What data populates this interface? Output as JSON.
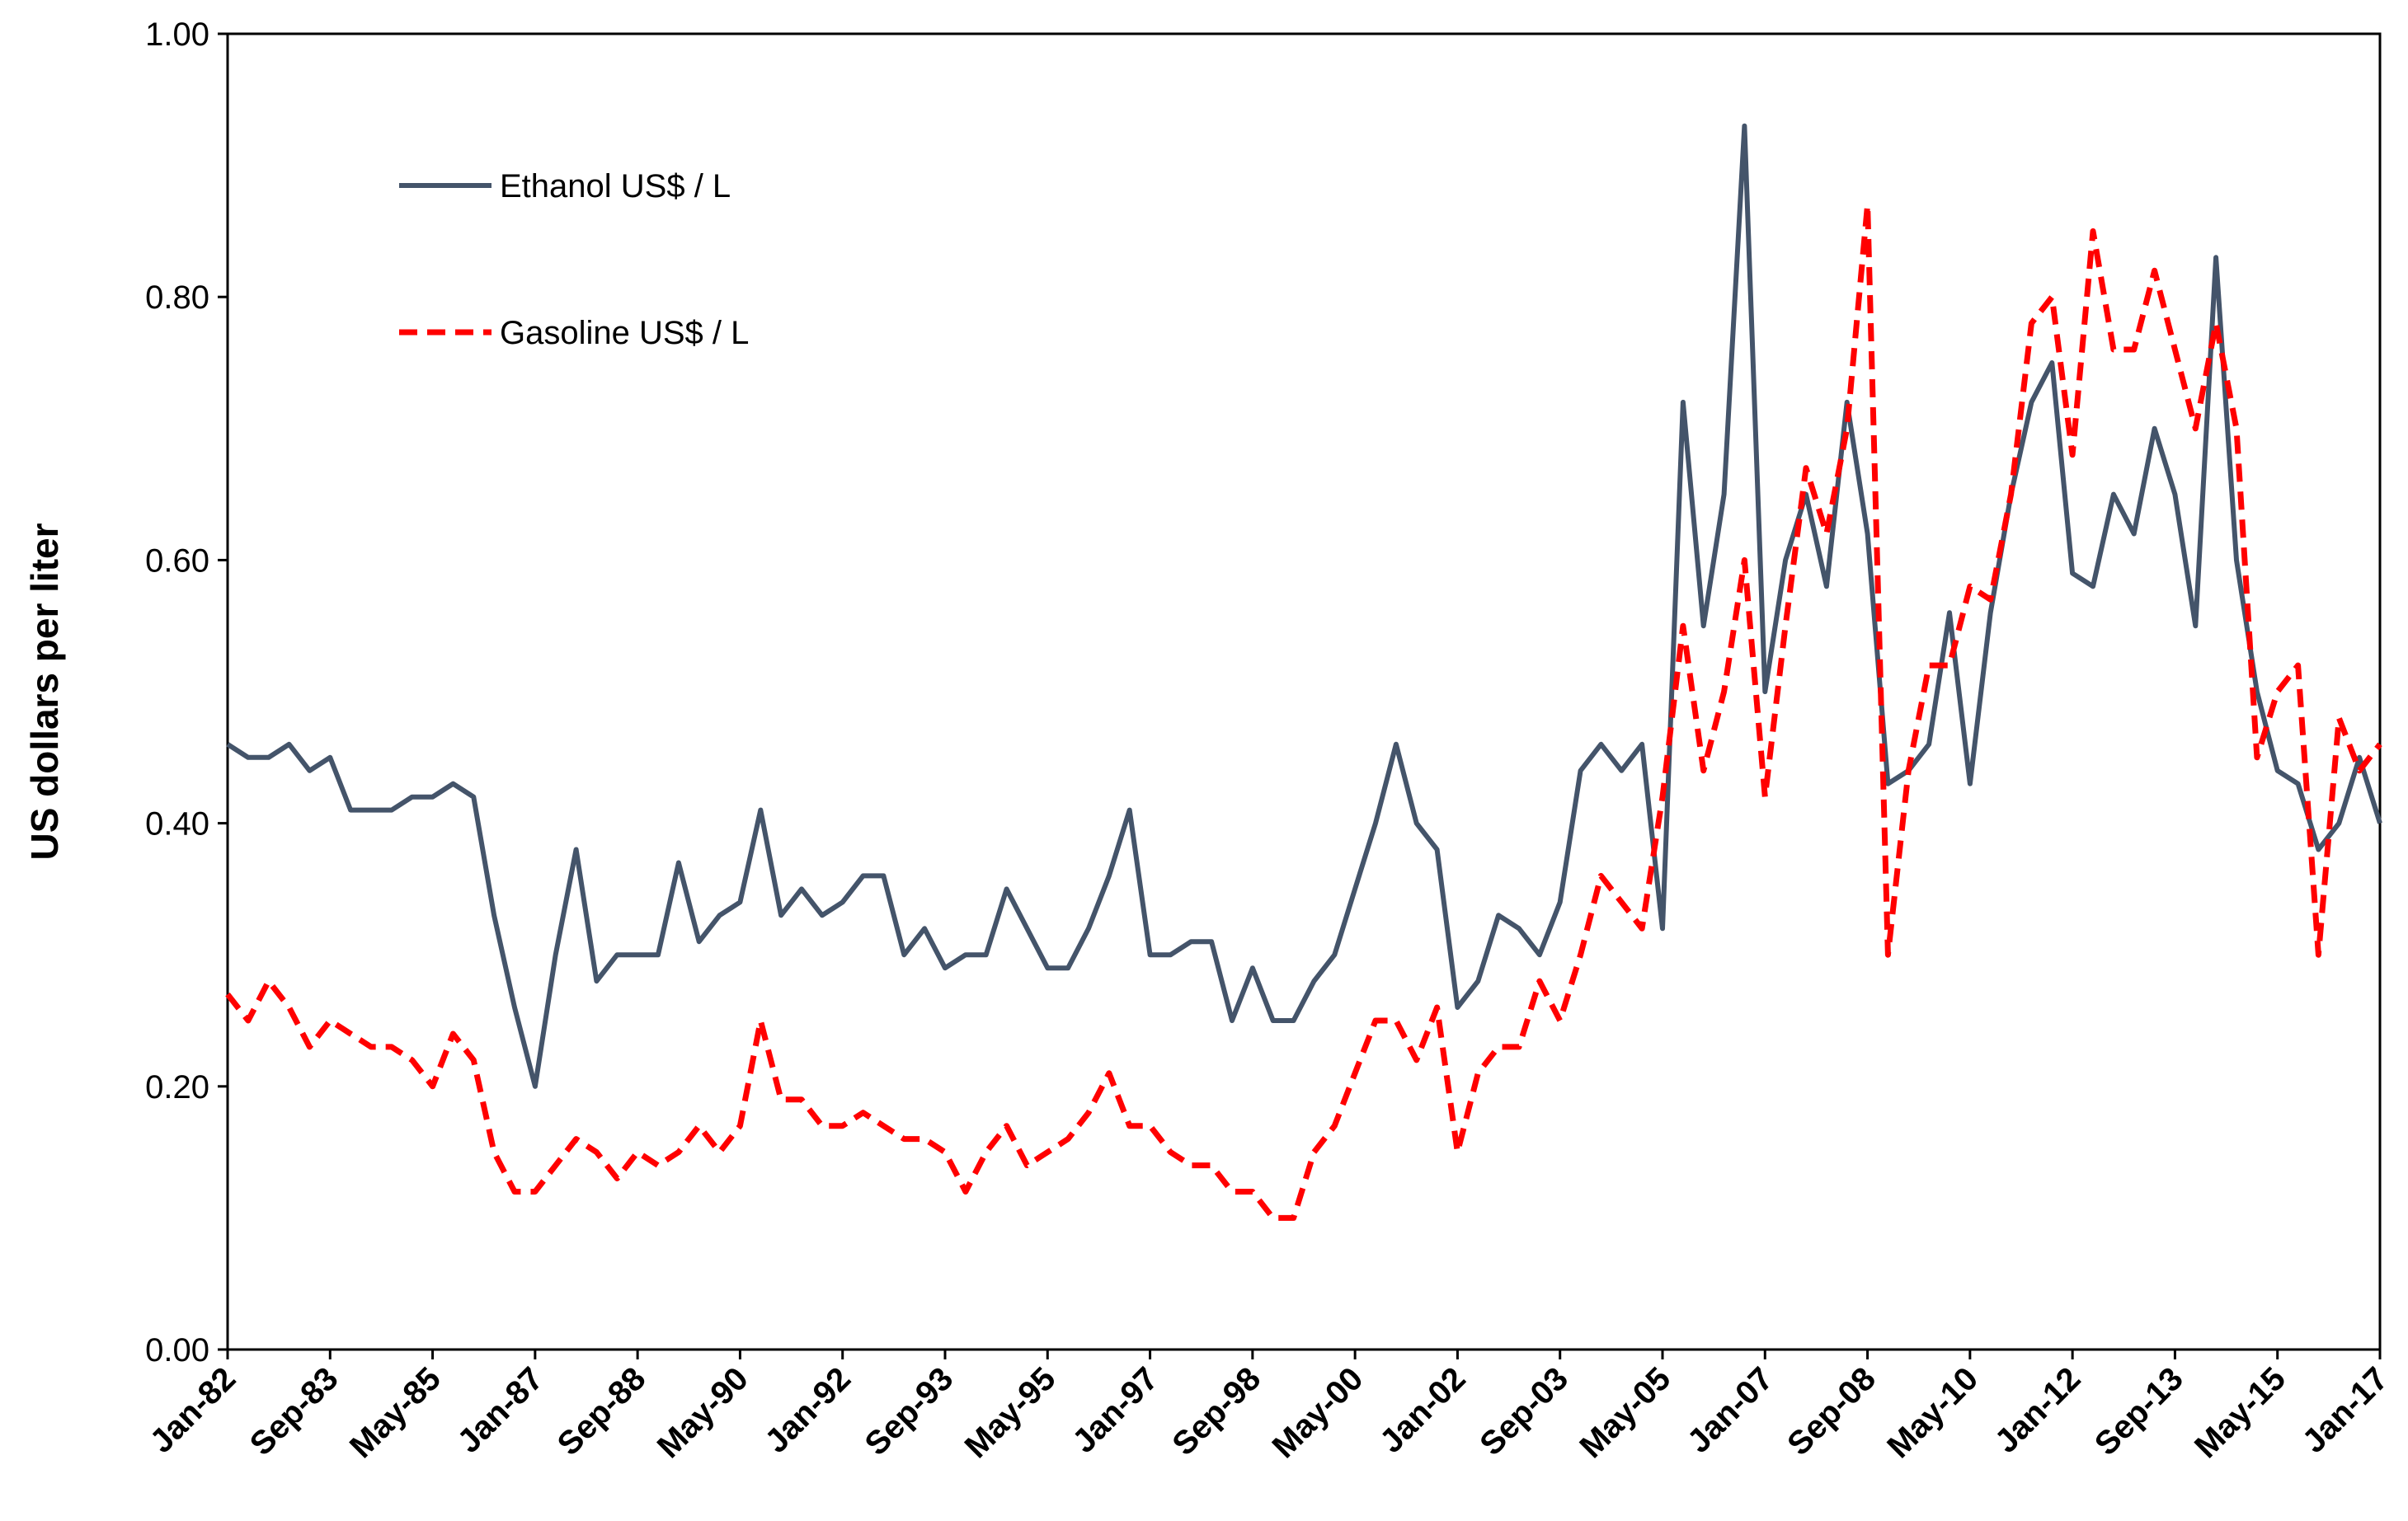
{
  "chart_data": {
    "type": "line",
    "ylabel": "US dollars per liter",
    "categories": [
      "Jan-82",
      null,
      null,
      null,
      null,
      "Sep-83",
      null,
      null,
      null,
      null,
      "May-85",
      null,
      null,
      null,
      null,
      "Jan-87",
      null,
      null,
      null,
      null,
      "Sep-88",
      null,
      null,
      null,
      null,
      "May-90",
      null,
      null,
      null,
      null,
      "Jan-92",
      null,
      null,
      null,
      null,
      "Sep-93",
      null,
      null,
      null,
      null,
      "May-95",
      null,
      null,
      null,
      null,
      "Jan-97",
      null,
      null,
      null,
      null,
      "Sep-98",
      null,
      null,
      null,
      null,
      "May-00",
      null,
      null,
      null,
      null,
      "Jan-02",
      null,
      null,
      null,
      null,
      "Sep-03",
      null,
      null,
      null,
      null,
      "May-05",
      null,
      null,
      null,
      null,
      "Jan-07",
      null,
      null,
      null,
      null,
      "Sep-08",
      null,
      null,
      null,
      null,
      "May-10",
      null,
      null,
      null,
      null,
      "Jan-12",
      null,
      null,
      null,
      null,
      "Sep-13",
      null,
      null,
      null,
      null,
      "May-15",
      null,
      null,
      null,
      null,
      "Jan-17"
    ],
    "series": [
      {
        "name": "Ethanol US$ / L",
        "color": "#44546a",
        "line_style": "solid",
        "values": [
          0.46,
          0.45,
          0.45,
          0.46,
          0.44,
          0.45,
          0.41,
          0.41,
          0.41,
          0.42,
          0.42,
          0.43,
          0.42,
          0.33,
          0.26,
          0.2,
          0.3,
          0.38,
          0.28,
          0.3,
          0.3,
          0.3,
          0.37,
          0.31,
          0.33,
          0.34,
          0.41,
          0.33,
          0.35,
          0.33,
          0.34,
          0.36,
          0.36,
          0.3,
          0.32,
          0.29,
          0.3,
          0.3,
          0.35,
          0.32,
          0.29,
          0.29,
          0.32,
          0.36,
          0.41,
          0.3,
          0.3,
          0.31,
          0.31,
          0.25,
          0.29,
          0.25,
          0.25,
          0.28,
          0.3,
          0.35,
          0.4,
          0.46,
          0.4,
          0.38,
          0.26,
          0.28,
          0.33,
          0.32,
          0.3,
          0.34,
          0.44,
          0.46,
          0.44,
          0.46,
          0.32,
          0.72,
          0.55,
          0.65,
          0.93,
          0.5,
          0.6,
          0.65,
          0.58,
          0.72,
          0.62,
          0.43,
          0.44,
          0.46,
          0.56,
          0.43,
          0.56,
          0.65,
          0.72,
          0.75,
          0.59,
          0.58,
          0.65,
          0.62,
          0.7,
          0.65,
          0.55,
          0.83,
          0.6,
          0.5,
          0.44,
          0.43,
          0.38,
          0.4,
          0.45,
          0.4
        ]
      },
      {
        "name": "Gasoline US$ / L",
        "color": "#ff0000",
        "line_style": "dashed",
        "values": [
          0.27,
          0.25,
          0.28,
          0.26,
          0.23,
          0.25,
          0.24,
          0.23,
          0.23,
          0.22,
          0.2,
          0.24,
          0.22,
          0.15,
          0.12,
          0.12,
          0.14,
          0.16,
          0.15,
          0.13,
          0.15,
          0.14,
          0.15,
          0.17,
          0.15,
          0.17,
          0.25,
          0.19,
          0.19,
          0.17,
          0.17,
          0.18,
          0.17,
          0.16,
          0.16,
          0.15,
          0.12,
          0.15,
          0.17,
          0.14,
          0.15,
          0.16,
          0.18,
          0.21,
          0.17,
          0.17,
          0.15,
          0.14,
          0.14,
          0.12,
          0.12,
          0.1,
          0.1,
          0.15,
          0.17,
          0.21,
          0.25,
          0.25,
          0.22,
          0.26,
          0.15,
          0.21,
          0.23,
          0.23,
          0.28,
          0.25,
          0.3,
          0.36,
          0.34,
          0.32,
          0.42,
          0.55,
          0.44,
          0.5,
          0.6,
          0.42,
          0.55,
          0.67,
          0.62,
          0.7,
          0.87,
          0.3,
          0.44,
          0.52,
          0.52,
          0.58,
          0.57,
          0.65,
          0.78,
          0.8,
          0.68,
          0.85,
          0.76,
          0.76,
          0.82,
          0.76,
          0.7,
          0.78,
          0.7,
          0.45,
          0.5,
          0.52,
          0.3,
          0.48,
          0.44,
          0.46
        ]
      }
    ],
    "ylim": [
      0,
      1
    ],
    "yticks": [
      {
        "value": 0,
        "label": "0.00"
      },
      {
        "value": 0.2,
        "label": "0.20"
      },
      {
        "value": 0.4,
        "label": "0.40"
      },
      {
        "value": 0.6,
        "label": "0.60"
      },
      {
        "value": 0.8,
        "label": "0.80"
      },
      {
        "value": 1,
        "label": "1.00"
      }
    ],
    "grid": false,
    "legend": "upper left"
  }
}
